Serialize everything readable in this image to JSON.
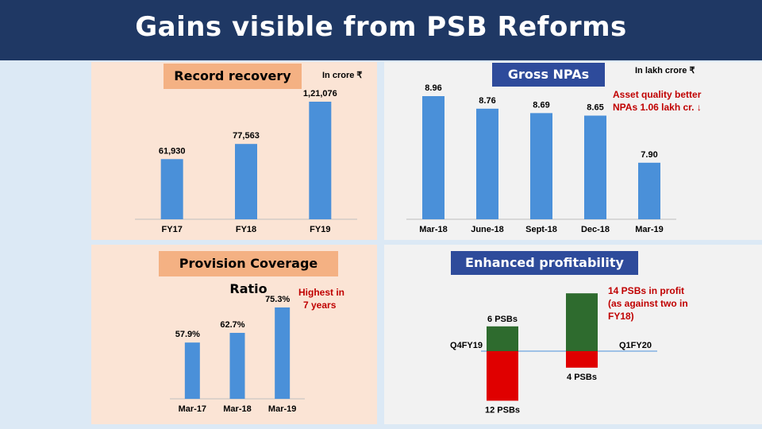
{
  "title": "Gains visible from PSB Reforms",
  "colors": {
    "bar": "#4a90d9",
    "header": "#1f3864",
    "profit": "#2e6b2e",
    "loss": "#e00000",
    "note": "#c00000"
  },
  "panels": {
    "recovery": {
      "label": "Record recovery",
      "unit": "In crore ₹"
    },
    "npa": {
      "label": "Gross NPAs",
      "unit": "In lakh crore ₹",
      "note": [
        "Asset quality better",
        "NPAs 1.06 lakh cr. ↓"
      ]
    },
    "pcr": {
      "label": "Provision Coverage Ratio",
      "note": [
        "Highest in",
        "7 years"
      ]
    },
    "profit": {
      "label": "Enhanced profitability",
      "note": [
        "14 PSBs in profit",
        "(as against two in",
        "FY18)"
      ]
    }
  },
  "chart_data": [
    {
      "type": "bar",
      "title": "Record recovery",
      "categories": [
        "FY17",
        "FY18",
        "FY19"
      ],
      "values": [
        61930,
        77563,
        121076
      ],
      "value_labels": [
        "61,930",
        "77,563",
        "1,21,076"
      ],
      "unit": "In crore ₹"
    },
    {
      "type": "bar",
      "title": "Gross NPAs",
      "categories": [
        "Mar-18",
        "June-18",
        "Sept-18",
        "Dec-18",
        "Mar-19"
      ],
      "values": [
        8.96,
        8.76,
        8.69,
        8.65,
        7.9
      ],
      "value_labels": [
        "8.96",
        "8.76",
        "8.69",
        "8.65",
        "7.90"
      ],
      "unit": "In lakh crore ₹"
    },
    {
      "type": "bar",
      "title": "Provision Coverage Ratio",
      "categories": [
        "Mar-17",
        "Mar-18",
        "Mar-19"
      ],
      "values": [
        57.9,
        62.7,
        75.3
      ],
      "value_labels": [
        "57.9%",
        "62.7%",
        "75.3%"
      ]
    },
    {
      "type": "bar",
      "title": "Enhanced profitability",
      "categories": [
        "Q4FY19",
        "Q1FY20"
      ],
      "series": [
        {
          "name": "",
          "values": [
            6,
            14
          ],
          "value_labels": [
            "6 PSBs",
            ""
          ]
        },
        {
          "name": "",
          "values": [
            12,
            4
          ],
          "value_labels": [
            "12 PSBs",
            "4 PSBs"
          ]
        }
      ]
    }
  ]
}
